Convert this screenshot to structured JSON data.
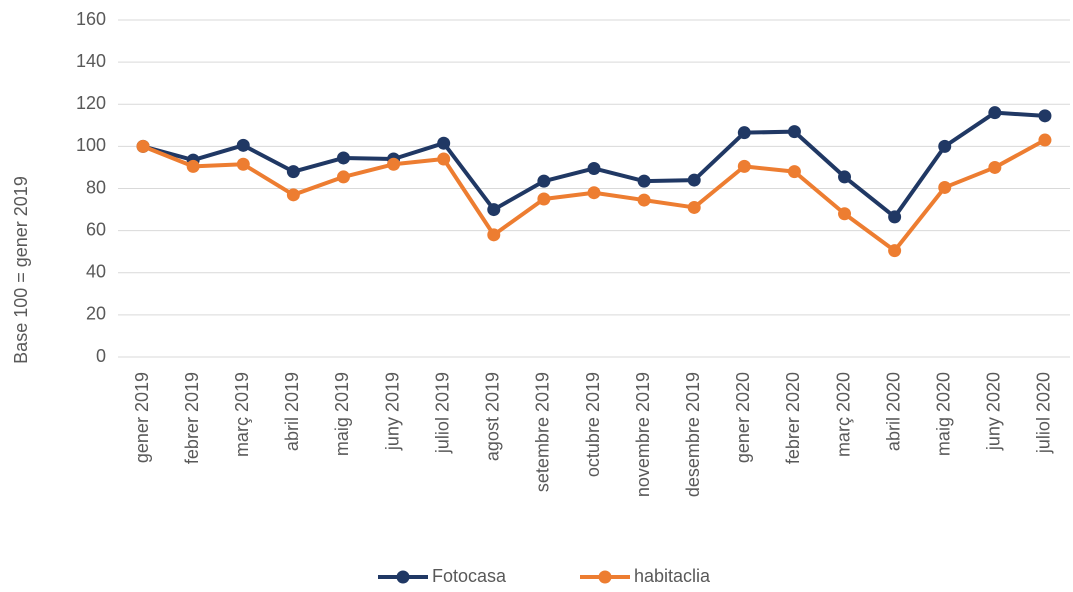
{
  "chart_data": {
    "type": "line",
    "y_label": "Base 100 = gener 2019",
    "categories": [
      "gener 2019",
      "febrer 2019",
      "març 2019",
      "abril 2019",
      "maig 2019",
      "juny 2019",
      "juliol 2019",
      "agost 2019",
      "setembre 2019",
      "octubre 2019",
      "novembre 2019",
      "desembre 2019",
      "gener 2020",
      "febrer 2020",
      "març 2020",
      "abril 2020",
      "maig 2020",
      "juny 2020",
      "juliol 2020"
    ],
    "series": [
      {
        "name": "Fotocasa",
        "color": "#203864",
        "values": [
          100,
          93.5,
          100.5,
          88,
          94.5,
          94,
          101.5,
          70,
          83.5,
          89.5,
          83.5,
          84,
          106.5,
          107,
          85.5,
          66.5,
          100,
          116,
          114.5
        ]
      },
      {
        "name": "habitaclia",
        "color": "#ed7d31",
        "values": [
          100,
          90.5,
          91.5,
          77,
          85.5,
          91.5,
          94,
          58,
          75,
          78,
          74.5,
          71,
          90.5,
          88,
          68,
          50.5,
          80.5,
          90,
          103
        ]
      }
    ],
    "ylim": [
      0,
      160
    ],
    "yticks": [
      0,
      20,
      40,
      60,
      80,
      100,
      120,
      140,
      160
    ],
    "grid": true,
    "legend": "bottom"
  }
}
